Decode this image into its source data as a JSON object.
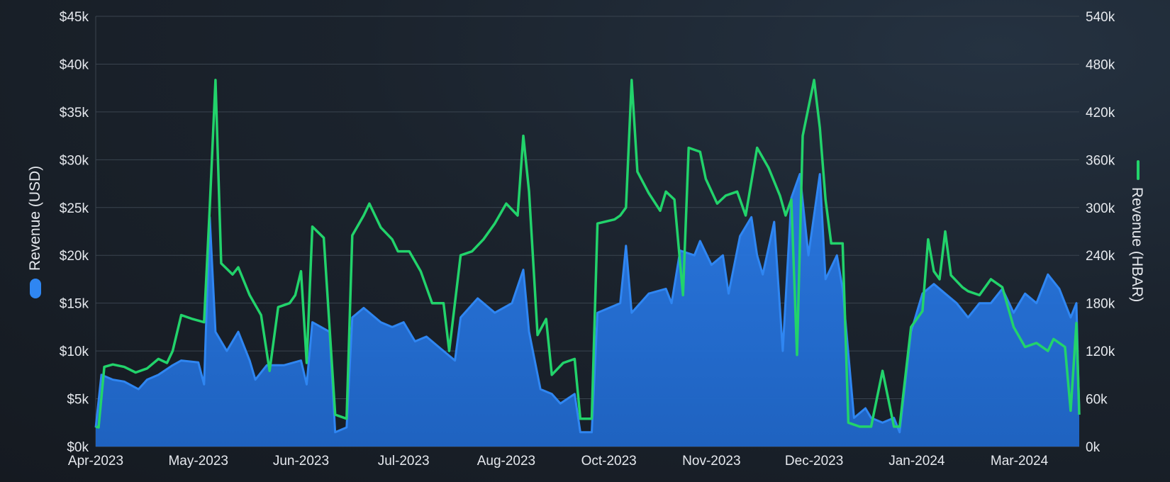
{
  "chart_data": {
    "type": "area",
    "colors": {
      "usd": "#2a78e0",
      "usd_line": "#2f86f2",
      "hbar": "#22d36b"
    },
    "legend_left": {
      "label": "Revenue (USD)",
      "icon": "blue-rounded-marker-icon"
    },
    "legend_right": {
      "label": "Revenue (HBAR)",
      "icon": "green-line-marker-icon"
    },
    "y_left": {
      "ticks": [
        "$0k",
        "$5k",
        "$10k",
        "$15k",
        "$20k",
        "$25k",
        "$30k",
        "$35k",
        "$40k",
        "$45k"
      ],
      "range": [
        0,
        45000
      ]
    },
    "y_right": {
      "ticks": [
        "0k",
        "60k",
        "120k",
        "180k",
        "240k",
        "300k",
        "360k",
        "420k",
        "480k",
        "540k"
      ],
      "range": [
        0,
        540000
      ]
    },
    "x_labels": [
      "Apr-2023",
      "May-2023",
      "Jun-2023",
      "Jul-2023",
      "Aug-2023",
      "Oct-2023",
      "Nov-2023",
      "Dec-2023",
      "Jan-2024",
      "Mar-2024"
    ],
    "x_range_days": [
      0,
      345
    ],
    "x_label_days": [
      0,
      36,
      72,
      108,
      144,
      180,
      216,
      252,
      288,
      324
    ],
    "series": [
      {
        "name": "Revenue (USD)",
        "axis": "left",
        "points": [
          [
            0,
            2000
          ],
          [
            2,
            7500
          ],
          [
            6,
            7000
          ],
          [
            10,
            6800
          ],
          [
            15,
            6000
          ],
          [
            18,
            7000
          ],
          [
            22,
            7500
          ],
          [
            27,
            8500
          ],
          [
            30,
            9000
          ],
          [
            36,
            8800
          ],
          [
            38,
            6500
          ],
          [
            40,
            24000
          ],
          [
            42,
            12000
          ],
          [
            46,
            10000
          ],
          [
            50,
            12000
          ],
          [
            54,
            9000
          ],
          [
            56,
            7000
          ],
          [
            60,
            8500
          ],
          [
            66,
            8500
          ],
          [
            72,
            9000
          ],
          [
            74,
            6500
          ],
          [
            76,
            13000
          ],
          [
            82,
            12000
          ],
          [
            84,
            1500
          ],
          [
            88,
            2000
          ],
          [
            90,
            13500
          ],
          [
            94,
            14500
          ],
          [
            100,
            13000
          ],
          [
            104,
            12500
          ],
          [
            108,
            13000
          ],
          [
            112,
            11000
          ],
          [
            116,
            11500
          ],
          [
            120,
            10500
          ],
          [
            126,
            9000
          ],
          [
            128,
            13500
          ],
          [
            134,
            15500
          ],
          [
            140,
            14000
          ],
          [
            146,
            15000
          ],
          [
            150,
            18500
          ],
          [
            152,
            12000
          ],
          [
            156,
            6000
          ],
          [
            160,
            5500
          ],
          [
            163,
            4500
          ],
          [
            168,
            5500
          ],
          [
            170,
            1500
          ],
          [
            174,
            1500
          ],
          [
            176,
            14000
          ],
          [
            184,
            15000
          ],
          [
            186,
            21000
          ],
          [
            188,
            14000
          ],
          [
            194,
            16000
          ],
          [
            200,
            16500
          ],
          [
            202,
            15000
          ],
          [
            205,
            20500
          ],
          [
            210,
            20000
          ],
          [
            212,
            21500
          ],
          [
            216,
            19000
          ],
          [
            220,
            20000
          ],
          [
            222,
            16000
          ],
          [
            226,
            22000
          ],
          [
            230,
            24000
          ],
          [
            232,
            20000
          ],
          [
            234,
            18000
          ],
          [
            238,
            23500
          ],
          [
            241,
            10000
          ],
          [
            244,
            26000
          ],
          [
            247,
            28500
          ],
          [
            250,
            20000
          ],
          [
            254,
            28500
          ],
          [
            256,
            17500
          ],
          [
            260,
            20000
          ],
          [
            262,
            16500
          ],
          [
            266,
            3000
          ],
          [
            270,
            4000
          ],
          [
            272,
            3000
          ],
          [
            276,
            2500
          ],
          [
            280,
            3000
          ],
          [
            282,
            1500
          ],
          [
            286,
            12000
          ],
          [
            290,
            16000
          ],
          [
            294,
            17000
          ],
          [
            298,
            16000
          ],
          [
            302,
            15000
          ],
          [
            306,
            13500
          ],
          [
            310,
            15000
          ],
          [
            314,
            15000
          ],
          [
            318,
            16500
          ],
          [
            322,
            14000
          ],
          [
            326,
            16000
          ],
          [
            330,
            15000
          ],
          [
            334,
            18000
          ],
          [
            338,
            16500
          ],
          [
            342,
            13500
          ],
          [
            344,
            15000
          ],
          [
            345,
            3500
          ]
        ]
      },
      {
        "name": "Revenue (HBAR)",
        "axis": "right",
        "points": [
          [
            0,
            25000
          ],
          [
            1,
            24000
          ],
          [
            3,
            100000
          ],
          [
            6,
            103000
          ],
          [
            10,
            100000
          ],
          [
            14,
            93000
          ],
          [
            18,
            98000
          ],
          [
            22,
            110000
          ],
          [
            25,
            105000
          ],
          [
            27,
            120000
          ],
          [
            30,
            165000
          ],
          [
            34,
            160000
          ],
          [
            38,
            156000
          ],
          [
            40,
            300000
          ],
          [
            42,
            460000
          ],
          [
            44,
            230000
          ],
          [
            48,
            216000
          ],
          [
            50,
            225000
          ],
          [
            54,
            190000
          ],
          [
            58,
            165000
          ],
          [
            61,
            95000
          ],
          [
            64,
            175000
          ],
          [
            68,
            180000
          ],
          [
            70,
            190000
          ],
          [
            72,
            220000
          ],
          [
            74,
            105000
          ],
          [
            76,
            276000
          ],
          [
            80,
            262000
          ],
          [
            84,
            40000
          ],
          [
            88,
            35000
          ],
          [
            90,
            265000
          ],
          [
            94,
            290000
          ],
          [
            96,
            305000
          ],
          [
            100,
            275000
          ],
          [
            104,
            260000
          ],
          [
            106,
            245000
          ],
          [
            110,
            245000
          ],
          [
            114,
            220000
          ],
          [
            118,
            180000
          ],
          [
            122,
            180000
          ],
          [
            124,
            120000
          ],
          [
            128,
            240000
          ],
          [
            132,
            245000
          ],
          [
            136,
            260000
          ],
          [
            140,
            280000
          ],
          [
            144,
            305000
          ],
          [
            148,
            290000
          ],
          [
            150,
            390000
          ],
          [
            152,
            320000
          ],
          [
            155,
            140000
          ],
          [
            158,
            160000
          ],
          [
            160,
            90000
          ],
          [
            164,
            105000
          ],
          [
            168,
            110000
          ],
          [
            170,
            35000
          ],
          [
            174,
            35000
          ],
          [
            176,
            280000
          ],
          [
            182,
            285000
          ],
          [
            184,
            290000
          ],
          [
            186,
            300000
          ],
          [
            188,
            460000
          ],
          [
            190,
            345000
          ],
          [
            194,
            318000
          ],
          [
            198,
            296000
          ],
          [
            200,
            320000
          ],
          [
            203,
            310000
          ],
          [
            206,
            190000
          ],
          [
            208,
            375000
          ],
          [
            212,
            370000
          ],
          [
            214,
            336000
          ],
          [
            218,
            305000
          ],
          [
            221,
            315000
          ],
          [
            225,
            320000
          ],
          [
            228,
            290000
          ],
          [
            232,
            375000
          ],
          [
            236,
            350000
          ],
          [
            240,
            315000
          ],
          [
            242,
            290000
          ],
          [
            244,
            310000
          ],
          [
            246,
            115000
          ],
          [
            248,
            390000
          ],
          [
            252,
            460000
          ],
          [
            254,
            400000
          ],
          [
            256,
            310000
          ],
          [
            258,
            255000
          ],
          [
            262,
            255000
          ],
          [
            264,
            30000
          ],
          [
            268,
            25000
          ],
          [
            272,
            25000
          ],
          [
            276,
            95000
          ],
          [
            280,
            25000
          ],
          [
            282,
            25000
          ],
          [
            286,
            150000
          ],
          [
            290,
            170000
          ],
          [
            292,
            260000
          ],
          [
            294,
            220000
          ],
          [
            296,
            210000
          ],
          [
            298,
            270000
          ],
          [
            300,
            215000
          ],
          [
            304,
            200000
          ],
          [
            306,
            195000
          ],
          [
            310,
            190000
          ],
          [
            314,
            210000
          ],
          [
            318,
            200000
          ],
          [
            322,
            150000
          ],
          [
            326,
            125000
          ],
          [
            330,
            130000
          ],
          [
            334,
            120000
          ],
          [
            336,
            135000
          ],
          [
            340,
            125000
          ],
          [
            342,
            45000
          ],
          [
            344,
            155000
          ],
          [
            345,
            40000
          ]
        ]
      }
    ]
  }
}
